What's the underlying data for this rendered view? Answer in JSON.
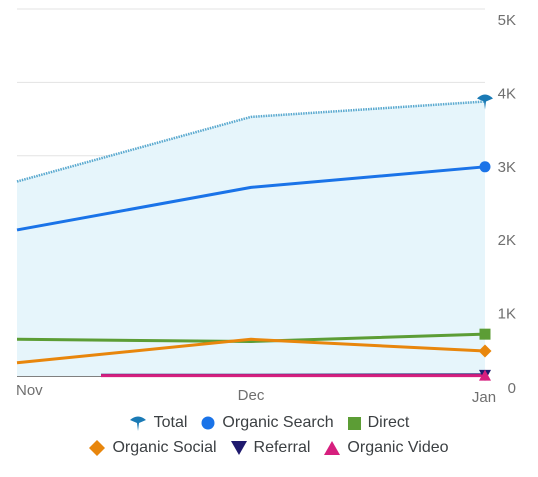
{
  "chart_data": {
    "type": "line",
    "x": [
      "Nov",
      "Dec",
      "Jan"
    ],
    "y_ticks": [
      "0",
      "1K",
      "2K",
      "3K",
      "4K",
      "5K"
    ],
    "ylim": [
      0,
      5000
    ],
    "grid": true,
    "legend_position": "bottom",
    "series": [
      {
        "name": "Total",
        "values": [
          2650,
          3530,
          3740
        ],
        "color": "#1a7ab5",
        "marker": "pin",
        "style": "dotted",
        "area": true,
        "area_color": "#e6f5fb"
      },
      {
        "name": "Organic Search",
        "values": [
          1990,
          2570,
          2850
        ],
        "color": "#1a73e8",
        "marker": "circle"
      },
      {
        "name": "Direct",
        "values": [
          500,
          470,
          570
        ],
        "color": "#5c9d35",
        "marker": "square"
      },
      {
        "name": "Organic Social",
        "values": [
          180,
          500,
          340
        ],
        "color": "#e8860c",
        "marker": "diamond"
      },
      {
        "name": "Referral",
        "values": [
          null,
          10,
          15
        ],
        "color": "#1f1a6e",
        "marker": "triangle-down"
      },
      {
        "name": "Organic Video",
        "values": [
          null,
          5,
          5
        ],
        "color": "#d61f7e",
        "marker": "triangle-up"
      }
    ]
  }
}
